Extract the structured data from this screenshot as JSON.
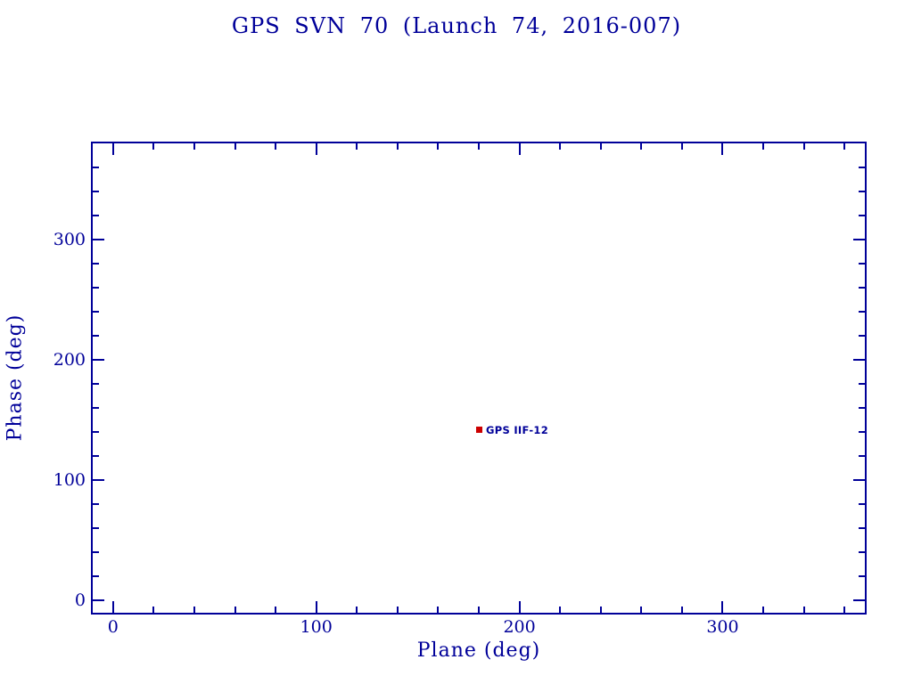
{
  "chart_data": {
    "type": "scatter",
    "title": "GPS SVN 70 (Launch 74, 2016-007)",
    "xlabel": "Plane (deg)",
    "ylabel": "Phase (deg)",
    "xlim": [
      -10,
      370
    ],
    "ylim": [
      -10,
      380
    ],
    "x_major_ticks": [
      0,
      100,
      200,
      300
    ],
    "y_major_ticks": [
      0,
      100,
      200,
      300
    ],
    "x_minor_step": 20,
    "y_minor_step": 20,
    "grid": false,
    "legend": "none",
    "points": [
      {
        "x": 180,
        "y": 142,
        "label": "GPS IIF-12",
        "marker": "square",
        "color": "#cc0000"
      }
    ],
    "colors": {
      "axis": "#000099",
      "text": "#000099",
      "point": "#cc0000"
    },
    "background": "#ffffff"
  }
}
